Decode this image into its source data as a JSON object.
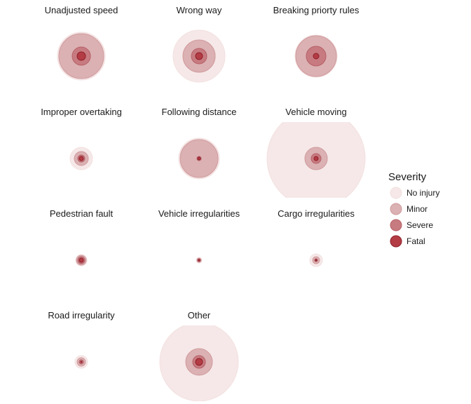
{
  "chart_data": {
    "type": "proportional-circles",
    "panels": [
      {
        "title": "Unadjusted speed",
        "values": {
          "No injury": 34,
          "Minor": 32,
          "Severe": 13,
          "Fatal": 6
        }
      },
      {
        "title": "Wrong way",
        "values": {
          "No injury": 37,
          "Minor": 23,
          "Severe": 11,
          "Fatal": 5
        }
      },
      {
        "title": "Breaking priorty rules",
        "values": {
          "No injury": 30,
          "Minor": 29,
          "Severe": 14,
          "Fatal": 4
        }
      },
      {
        "title": "Improper overtaking",
        "values": {
          "No injury": 16,
          "Minor": 10,
          "Severe": 5,
          "Fatal": 3
        }
      },
      {
        "title": "Following distance",
        "values": {
          "No injury": 29,
          "Minor": 27,
          "Severe": 3,
          "Fatal": 2
        }
      },
      {
        "title": "Vehicle moving",
        "values": {
          "No injury": 70,
          "Minor": 16,
          "Severe": 7,
          "Fatal": 3
        }
      },
      {
        "title": "Pedestrian fault",
        "values": {
          "No injury": 8,
          "Minor": 7,
          "Severe": 5,
          "Fatal": 3
        }
      },
      {
        "title": "Vehicle irregularities",
        "values": {
          "No injury": 4,
          "Minor": 3,
          "Severe": 2,
          "Fatal": 1
        }
      },
      {
        "title": "Cargo irregularities",
        "values": {
          "No injury": 9,
          "Minor": 5,
          "Severe": 2,
          "Fatal": 1
        }
      },
      {
        "title": "Road irregularity",
        "values": {
          "No injury": 9,
          "Minor": 6,
          "Severe": 3,
          "Fatal": 1
        }
      },
      {
        "title": "Other",
        "values": {
          "No injury": 56,
          "Minor": 19,
          "Severe": 9,
          "Fatal": 5
        }
      }
    ],
    "legend": {
      "title": "Severity",
      "items": [
        {
          "label": "No injury",
          "fill": "#f6e8e8",
          "stroke": "#f3e0e0"
        },
        {
          "label": "Minor",
          "fill": "#dbb1b3",
          "stroke": "#d09a9d"
        },
        {
          "label": "Severe",
          "fill": "#c77b80",
          "stroke": "#b55f66"
        },
        {
          "label": "Fatal",
          "fill": "#b33c45",
          "stroke": "#8e1f29"
        }
      ],
      "position": "right"
    },
    "grid": false
  }
}
